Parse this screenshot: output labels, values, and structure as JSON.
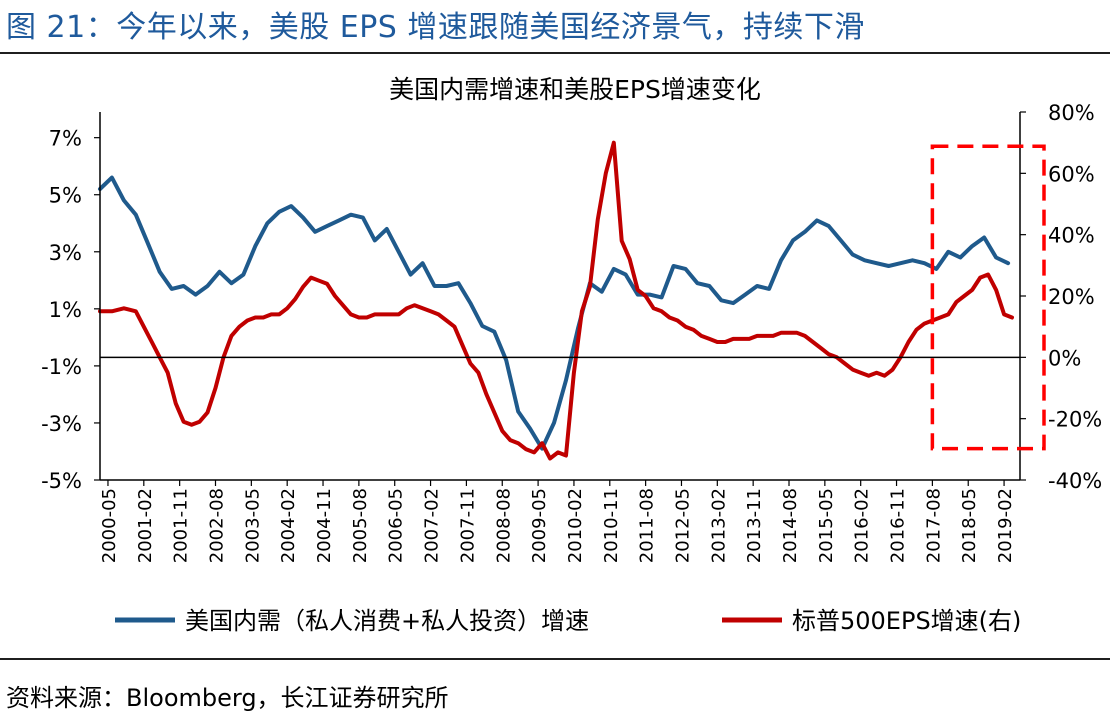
{
  "figure": {
    "title": "图 21：今年以来，美股 EPS 增速跟随美国经济景气，持续下滑",
    "source": "资料来源：Bloomberg，长江证券研究所"
  },
  "chart_data": {
    "type": "line",
    "title": "美国内需增速和美股EPS增速变化",
    "y_left": {
      "range": [
        -5,
        7.9
      ],
      "ticks": [
        "7%",
        "5%",
        "3%",
        "1%",
        "-1%",
        "-3%",
        "-5%"
      ],
      "tick_values": [
        7,
        5,
        3,
        1,
        -1,
        -3,
        -5
      ]
    },
    "y_right": {
      "range": [
        -40,
        80
      ],
      "ticks": [
        "80%",
        "60%",
        "40%",
        "20%",
        "0%",
        "-20%",
        "-40%"
      ],
      "tick_values": [
        80,
        60,
        40,
        20,
        0,
        -20,
        -40
      ]
    },
    "x_range": [
      "2000-03",
      "2019-06"
    ],
    "x_ticks": [
      "2000-05",
      "2001-02",
      "2001-11",
      "2002-08",
      "2003-05",
      "2004-02",
      "2004-11",
      "2005-08",
      "2006-05",
      "2007-02",
      "2007-11",
      "2008-08",
      "2009-05",
      "2010-02",
      "2010-11",
      "2011-08",
      "2012-05",
      "2013-02",
      "2013-11",
      "2014-08",
      "2015-05",
      "2016-02",
      "2016-11",
      "2017-08",
      "2018-05",
      "2019-02"
    ],
    "legend_position": "bottom",
    "series": [
      {
        "name": "美国内需（私人消费+私人投资）增速",
        "axis": "left",
        "color": "#1f5a8c",
        "points": [
          [
            "2000-03",
            5.2
          ],
          [
            "2000-06",
            5.6
          ],
          [
            "2000-09",
            4.8
          ],
          [
            "2000-12",
            4.3
          ],
          [
            "2001-03",
            3.3
          ],
          [
            "2001-06",
            2.3
          ],
          [
            "2001-09",
            1.7
          ],
          [
            "2001-12",
            1.8
          ],
          [
            "2002-03",
            1.5
          ],
          [
            "2002-06",
            1.8
          ],
          [
            "2002-09",
            2.3
          ],
          [
            "2002-12",
            1.9
          ],
          [
            "2003-03",
            2.2
          ],
          [
            "2003-06",
            3.2
          ],
          [
            "2003-09",
            4.0
          ],
          [
            "2003-12",
            4.4
          ],
          [
            "2004-03",
            4.6
          ],
          [
            "2004-06",
            4.2
          ],
          [
            "2004-09",
            3.7
          ],
          [
            "2004-12",
            3.9
          ],
          [
            "2005-03",
            4.1
          ],
          [
            "2005-06",
            4.3
          ],
          [
            "2005-09",
            4.2
          ],
          [
            "2005-12",
            3.4
          ],
          [
            "2006-03",
            3.8
          ],
          [
            "2006-06",
            3.0
          ],
          [
            "2006-09",
            2.2
          ],
          [
            "2006-12",
            2.6
          ],
          [
            "2007-03",
            1.8
          ],
          [
            "2007-06",
            1.8
          ],
          [
            "2007-09",
            1.9
          ],
          [
            "2007-12",
            1.2
          ],
          [
            "2008-03",
            0.4
          ],
          [
            "2008-06",
            0.2
          ],
          [
            "2008-09",
            -0.8
          ],
          [
            "2008-12",
            -2.6
          ],
          [
            "2009-03",
            -3.2
          ],
          [
            "2009-06",
            -3.9
          ],
          [
            "2009-09",
            -3.0
          ],
          [
            "2009-12",
            -1.5
          ],
          [
            "2010-03",
            0.3
          ],
          [
            "2010-06",
            1.9
          ],
          [
            "2010-09",
            1.6
          ],
          [
            "2010-12",
            2.4
          ],
          [
            "2011-03",
            2.2
          ],
          [
            "2011-06",
            1.5
          ],
          [
            "2011-09",
            1.5
          ],
          [
            "2011-12",
            1.4
          ],
          [
            "2012-03",
            2.5
          ],
          [
            "2012-06",
            2.4
          ],
          [
            "2012-09",
            1.9
          ],
          [
            "2012-12",
            1.8
          ],
          [
            "2013-03",
            1.3
          ],
          [
            "2013-06",
            1.2
          ],
          [
            "2013-09",
            1.5
          ],
          [
            "2013-12",
            1.8
          ],
          [
            "2014-03",
            1.7
          ],
          [
            "2014-06",
            2.7
          ],
          [
            "2014-09",
            3.4
          ],
          [
            "2014-12",
            3.7
          ],
          [
            "2015-03",
            4.1
          ],
          [
            "2015-06",
            3.9
          ],
          [
            "2015-09",
            3.4
          ],
          [
            "2015-12",
            2.9
          ],
          [
            "2016-03",
            2.7
          ],
          [
            "2016-06",
            2.6
          ],
          [
            "2016-09",
            2.5
          ],
          [
            "2016-12",
            2.6
          ],
          [
            "2017-03",
            2.7
          ],
          [
            "2017-06",
            2.6
          ],
          [
            "2017-09",
            2.4
          ],
          [
            "2017-12",
            3.0
          ],
          [
            "2018-03",
            2.8
          ],
          [
            "2018-06",
            3.2
          ],
          [
            "2018-09",
            3.5
          ],
          [
            "2018-12",
            2.8
          ],
          [
            "2019-03",
            2.6
          ]
        ]
      },
      {
        "name": "标普500EPS增速(右)",
        "axis": "right",
        "color": "#c00000",
        "points": [
          [
            "2000-03",
            15
          ],
          [
            "2000-06",
            15
          ],
          [
            "2000-09",
            16
          ],
          [
            "2000-12",
            15
          ],
          [
            "2001-02",
            10
          ],
          [
            "2001-04",
            5
          ],
          [
            "2001-06",
            0
          ],
          [
            "2001-08",
            -5
          ],
          [
            "2001-10",
            -15
          ],
          [
            "2001-12",
            -21
          ],
          [
            "2002-02",
            -22
          ],
          [
            "2002-04",
            -21
          ],
          [
            "2002-06",
            -18
          ],
          [
            "2002-08",
            -10
          ],
          [
            "2002-10",
            0
          ],
          [
            "2002-12",
            7
          ],
          [
            "2003-02",
            10
          ],
          [
            "2003-04",
            12
          ],
          [
            "2003-06",
            13
          ],
          [
            "2003-08",
            13
          ],
          [
            "2003-10",
            14
          ],
          [
            "2003-12",
            14
          ],
          [
            "2004-02",
            16
          ],
          [
            "2004-04",
            19
          ],
          [
            "2004-06",
            23
          ],
          [
            "2004-08",
            26
          ],
          [
            "2004-10",
            25
          ],
          [
            "2004-12",
            24
          ],
          [
            "2005-02",
            20
          ],
          [
            "2005-04",
            17
          ],
          [
            "2005-06",
            14
          ],
          [
            "2005-08",
            13
          ],
          [
            "2005-10",
            13
          ],
          [
            "2005-12",
            14
          ],
          [
            "2006-02",
            14
          ],
          [
            "2006-04",
            14
          ],
          [
            "2006-06",
            14
          ],
          [
            "2006-08",
            16
          ],
          [
            "2006-10",
            17
          ],
          [
            "2006-12",
            16
          ],
          [
            "2007-02",
            15
          ],
          [
            "2007-04",
            14
          ],
          [
            "2007-06",
            12
          ],
          [
            "2007-08",
            10
          ],
          [
            "2007-10",
            4
          ],
          [
            "2007-12",
            -2
          ],
          [
            "2008-02",
            -5
          ],
          [
            "2008-04",
            -12
          ],
          [
            "2008-06",
            -18
          ],
          [
            "2008-08",
            -24
          ],
          [
            "2008-10",
            -27
          ],
          [
            "2008-12",
            -28
          ],
          [
            "2009-02",
            -30
          ],
          [
            "2009-04",
            -31
          ],
          [
            "2009-06",
            -28
          ],
          [
            "2009-08",
            -33
          ],
          [
            "2009-10",
            -31
          ],
          [
            "2009-12",
            -32
          ],
          [
            "2010-02",
            -5
          ],
          [
            "2010-04",
            15
          ],
          [
            "2010-06",
            23
          ],
          [
            "2010-08",
            45
          ],
          [
            "2010-10",
            60
          ],
          [
            "2010-12",
            70
          ],
          [
            "2011-02",
            38
          ],
          [
            "2011-04",
            32
          ],
          [
            "2011-06",
            22
          ],
          [
            "2011-08",
            20
          ],
          [
            "2011-10",
            16
          ],
          [
            "2011-12",
            15
          ],
          [
            "2012-02",
            13
          ],
          [
            "2012-04",
            12
          ],
          [
            "2012-06",
            10
          ],
          [
            "2012-08",
            9
          ],
          [
            "2012-10",
            7
          ],
          [
            "2012-12",
            6
          ],
          [
            "2013-02",
            5
          ],
          [
            "2013-04",
            5
          ],
          [
            "2013-06",
            6
          ],
          [
            "2013-08",
            6
          ],
          [
            "2013-10",
            6
          ],
          [
            "2013-12",
            7
          ],
          [
            "2014-02",
            7
          ],
          [
            "2014-04",
            7
          ],
          [
            "2014-06",
            8
          ],
          [
            "2014-08",
            8
          ],
          [
            "2014-10",
            8
          ],
          [
            "2014-12",
            7
          ],
          [
            "2015-02",
            5
          ],
          [
            "2015-04",
            3
          ],
          [
            "2015-06",
            1
          ],
          [
            "2015-08",
            0
          ],
          [
            "2015-10",
            -2
          ],
          [
            "2015-12",
            -4
          ],
          [
            "2016-02",
            -5
          ],
          [
            "2016-04",
            -6
          ],
          [
            "2016-06",
            -5
          ],
          [
            "2016-08",
            -6
          ],
          [
            "2016-10",
            -4
          ],
          [
            "2016-12",
            0
          ],
          [
            "2017-02",
            5
          ],
          [
            "2017-04",
            9
          ],
          [
            "2017-06",
            11
          ],
          [
            "2017-08",
            12
          ],
          [
            "2017-10",
            13
          ],
          [
            "2017-12",
            14
          ],
          [
            "2018-02",
            18
          ],
          [
            "2018-04",
            20
          ],
          [
            "2018-06",
            22
          ],
          [
            "2018-08",
            26
          ],
          [
            "2018-10",
            27
          ],
          [
            "2018-12",
            22
          ],
          [
            "2019-02",
            14
          ],
          [
            "2019-04",
            13
          ]
        ]
      }
    ],
    "highlight_box": {
      "from": "2017-08",
      "to": "2019-06",
      "y_left": [
        -3.9,
        6.7
      ],
      "style": "red-dashed"
    }
  }
}
